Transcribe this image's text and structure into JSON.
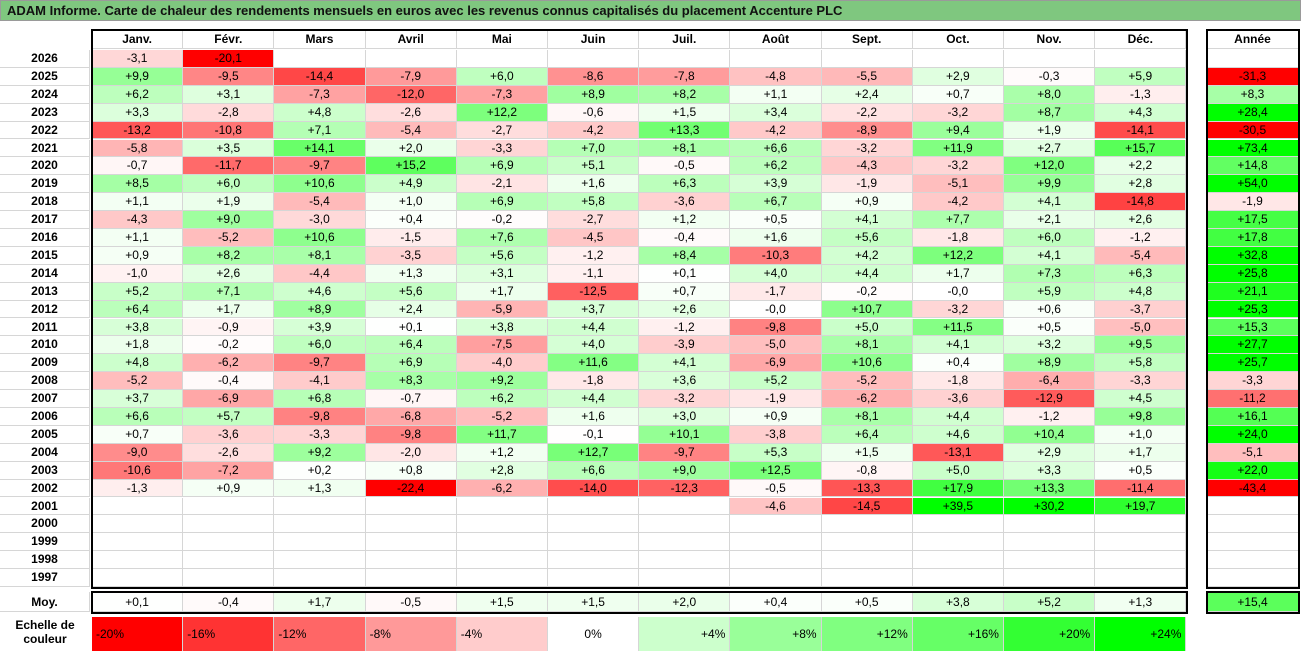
{
  "title": "ADAM Informe. Carte de chaleur des rendements mensuels en euros avec les revenus connus capitalisés du placement Accenture PLC",
  "chart_data": {
    "type": "heatmap",
    "columns": [
      "Janv.",
      "Févr.",
      "Mars",
      "Avril",
      "Mai",
      "Juin",
      "Juil.",
      "Août",
      "Sept.",
      "Oct.",
      "Nov.",
      "Déc."
    ],
    "year_header": "Année",
    "rows": [
      {
        "label": "2026",
        "values": [
          -3.1,
          -20.1,
          null,
          null,
          null,
          null,
          null,
          null,
          null,
          null,
          null,
          null
        ],
        "annual": null
      },
      {
        "label": "2025",
        "values": [
          9.9,
          -9.5,
          -14.4,
          -7.9,
          6.0,
          -8.6,
          -7.8,
          -4.8,
          -5.5,
          2.9,
          -0.3,
          5.9
        ],
        "annual": -31.3
      },
      {
        "label": "2024",
        "values": [
          6.2,
          3.1,
          -7.3,
          -12.0,
          -7.3,
          8.9,
          8.2,
          1.1,
          2.4,
          0.7,
          8.0,
          -1.3
        ],
        "annual": 8.3
      },
      {
        "label": "2023",
        "values": [
          3.3,
          -2.8,
          4.8,
          -2.6,
          12.2,
          -0.6,
          1.5,
          3.4,
          -2.2,
          -3.2,
          8.7,
          4.3
        ],
        "annual": 28.4
      },
      {
        "label": "2022",
        "values": [
          -13.2,
          -10.8,
          7.1,
          -5.4,
          -2.7,
          -4.2,
          13.3,
          -4.2,
          -8.9,
          9.4,
          1.9,
          -14.1
        ],
        "annual": -30.5
      },
      {
        "label": "2021",
        "values": [
          -5.8,
          3.5,
          14.1,
          2.0,
          -3.3,
          7.0,
          8.1,
          6.6,
          -3.2,
          11.9,
          2.7,
          15.7
        ],
        "annual": 73.4
      },
      {
        "label": "2020",
        "values": [
          -0.7,
          -11.7,
          -9.7,
          15.2,
          6.9,
          5.1,
          -0.5,
          6.2,
          -4.3,
          -3.2,
          12.0,
          2.2
        ],
        "annual": 14.8
      },
      {
        "label": "2019",
        "values": [
          8.5,
          6.0,
          10.6,
          4.9,
          -2.1,
          1.6,
          6.3,
          3.9,
          -1.9,
          -5.1,
          9.9,
          2.8
        ],
        "annual": 54.0
      },
      {
        "label": "2018",
        "values": [
          1.1,
          1.9,
          -5.4,
          1.0,
          6.9,
          5.8,
          -3.6,
          6.7,
          0.9,
          -4.2,
          4.1,
          -14.8
        ],
        "annual": -1.9
      },
      {
        "label": "2017",
        "values": [
          -4.3,
          9.0,
          -3.0,
          0.4,
          -0.2,
          -2.7,
          1.2,
          0.5,
          4.1,
          7.7,
          2.1,
          2.6
        ],
        "annual": 17.5
      },
      {
        "label": "2016",
        "values": [
          1.1,
          -5.2,
          10.6,
          -1.5,
          7.6,
          -4.5,
          -0.4,
          1.6,
          5.6,
          -1.8,
          6.0,
          -1.2
        ],
        "annual": 17.8
      },
      {
        "label": "2015",
        "values": [
          0.9,
          8.2,
          8.1,
          -3.5,
          5.6,
          -1.2,
          8.4,
          -10.3,
          4.2,
          12.2,
          4.1,
          -5.4
        ],
        "annual": 32.8
      },
      {
        "label": "2014",
        "values": [
          -1.0,
          2.6,
          -4.4,
          1.3,
          3.1,
          -1.1,
          0.1,
          4.0,
          4.4,
          1.7,
          7.3,
          6.3
        ],
        "annual": 25.8
      },
      {
        "label": "2013",
        "values": [
          5.2,
          7.1,
          4.6,
          5.6,
          1.7,
          -12.5,
          0.7,
          -1.7,
          -0.2,
          -0.0,
          5.9,
          4.8
        ],
        "annual": 21.1
      },
      {
        "label": "2012",
        "values": [
          6.4,
          1.7,
          8.9,
          2.4,
          -5.9,
          3.7,
          2.6,
          -0.0,
          10.7,
          -3.2,
          0.6,
          -3.7
        ],
        "annual": 25.3
      },
      {
        "label": "2011",
        "values": [
          3.8,
          -0.9,
          3.9,
          0.1,
          3.8,
          4.4,
          -1.2,
          -9.8,
          5.0,
          11.5,
          0.5,
          -5.0
        ],
        "annual": 15.3
      },
      {
        "label": "2010",
        "values": [
          1.8,
          -0.2,
          6.0,
          6.4,
          -7.5,
          4.0,
          -3.9,
          -5.0,
          8.1,
          4.1,
          3.2,
          9.5
        ],
        "annual": 27.7
      },
      {
        "label": "2009",
        "values": [
          4.8,
          -6.2,
          -9.7,
          6.9,
          -4.0,
          11.6,
          4.1,
          -6.9,
          10.6,
          0.4,
          8.9,
          5.8
        ],
        "annual": 25.7
      },
      {
        "label": "2008",
        "values": [
          -5.2,
          -0.4,
          -4.1,
          8.3,
          9.2,
          -1.8,
          3.6,
          5.2,
          -5.2,
          -1.8,
          -6.4,
          -3.3
        ],
        "annual": -3.3
      },
      {
        "label": "2007",
        "values": [
          3.7,
          -6.9,
          6.8,
          -0.7,
          6.2,
          4.4,
          -3.2,
          -1.9,
          -6.2,
          -3.6,
          -12.9,
          4.5
        ],
        "annual": -11.2
      },
      {
        "label": "2006",
        "values": [
          6.6,
          5.7,
          -9.8,
          -6.8,
          -5.2,
          1.6,
          3.0,
          0.9,
          8.1,
          4.4,
          -1.2,
          9.8
        ],
        "annual": 16.1
      },
      {
        "label": "2005",
        "values": [
          0.7,
          -3.6,
          -3.3,
          -9.8,
          11.7,
          -0.1,
          10.1,
          -3.8,
          6.4,
          4.6,
          10.4,
          1.0
        ],
        "annual": 24.0
      },
      {
        "label": "2004",
        "values": [
          -9.0,
          -2.6,
          9.2,
          -2.0,
          1.2,
          12.7,
          -9.7,
          5.3,
          1.5,
          -13.1,
          2.9,
          1.7
        ],
        "annual": -5.1
      },
      {
        "label": "2003",
        "values": [
          -10.6,
          -7.2,
          0.2,
          0.8,
          2.8,
          6.6,
          9.0,
          12.5,
          -0.8,
          5.0,
          3.3,
          0.5
        ],
        "annual": 22.0
      },
      {
        "label": "2002",
        "values": [
          -1.3,
          0.9,
          1.3,
          -22.4,
          -6.2,
          -14.0,
          -12.3,
          -0.5,
          -13.3,
          17.9,
          13.3,
          -11.4
        ],
        "annual": -43.4
      },
      {
        "label": "2001",
        "values": [
          null,
          null,
          null,
          null,
          null,
          null,
          null,
          -4.6,
          -14.5,
          39.5,
          30.2,
          19.7
        ],
        "annual": null
      },
      {
        "label": "2000",
        "values": [
          null,
          null,
          null,
          null,
          null,
          null,
          null,
          null,
          null,
          null,
          null,
          null
        ],
        "annual": null
      },
      {
        "label": "1999",
        "values": [
          null,
          null,
          null,
          null,
          null,
          null,
          null,
          null,
          null,
          null,
          null,
          null
        ],
        "annual": null
      },
      {
        "label": "1998",
        "values": [
          null,
          null,
          null,
          null,
          null,
          null,
          null,
          null,
          null,
          null,
          null,
          null
        ],
        "annual": null
      },
      {
        "label": "1997",
        "values": [
          null,
          null,
          null,
          null,
          null,
          null,
          null,
          null,
          null,
          null,
          null,
          null
        ],
        "annual": null
      }
    ],
    "average": {
      "label": "Moy.",
      "values": [
        0.1,
        -0.4,
        1.7,
        -0.5,
        1.5,
        1.5,
        2.0,
        0.4,
        0.5,
        3.8,
        5.2,
        1.3
      ],
      "annual": 15.4
    },
    "scale": {
      "label_line1": "Echelle de",
      "label_line2": "couleur",
      "items": [
        {
          "label": "-20%",
          "color": "#ff0000"
        },
        {
          "label": "-16%",
          "color": "#ff3333"
        },
        {
          "label": "-12%",
          "color": "#ff6666"
        },
        {
          "label": "-8%",
          "color": "#ff9999"
        },
        {
          "label": "-4%",
          "color": "#ffcccc"
        },
        {
          "label": "0%",
          "color": "#ffffff"
        },
        {
          "label": "+4%",
          "color": "#ccffcc"
        },
        {
          "label": "+8%",
          "color": "#99ff99"
        },
        {
          "label": "+12%",
          "color": "#80ff80"
        },
        {
          "label": "+16%",
          "color": "#66ff66"
        },
        {
          "label": "+20%",
          "color": "#33ff33"
        },
        {
          "label": "+24%",
          "color": "#00ff00"
        }
      ]
    }
  }
}
